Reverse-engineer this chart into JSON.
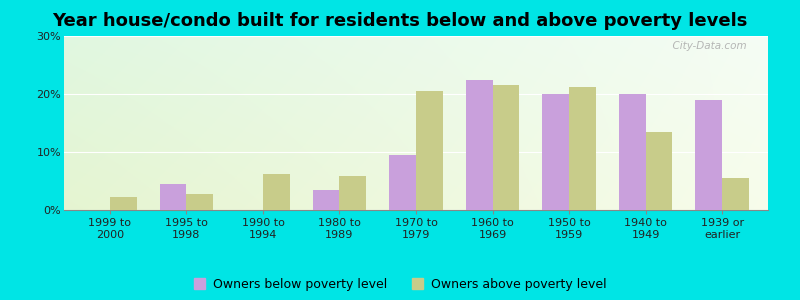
{
  "title": "Year house/condo built for residents below and above poverty levels",
  "categories": [
    "1999 to\n2000",
    "1995 to\n1998",
    "1990 to\n1994",
    "1980 to\n1989",
    "1970 to\n1979",
    "1960 to\n1969",
    "1950 to\n1959",
    "1940 to\n1949",
    "1939 or\nearlier"
  ],
  "below_poverty": [
    0,
    4.5,
    0,
    3.5,
    9.5,
    22.5,
    20.0,
    20.0,
    19.0
  ],
  "above_poverty": [
    2.2,
    2.8,
    6.2,
    5.8,
    20.5,
    21.5,
    21.2,
    13.5,
    5.5
  ],
  "below_color": "#c9a0dc",
  "above_color": "#c8cc8a",
  "background_outer": "#00e5e5",
  "ylim": [
    0,
    30
  ],
  "yticks": [
    0,
    10,
    20,
    30
  ],
  "ytick_labels": [
    "0%",
    "10%",
    "20%",
    "30%"
  ],
  "title_fontsize": 13,
  "tick_fontsize": 8,
  "legend_fontsize": 9,
  "bar_width": 0.35,
  "legend_below_label": "Owners below poverty level",
  "legend_above_label": "Owners above poverty level",
  "watermark": "  City-Data.com"
}
